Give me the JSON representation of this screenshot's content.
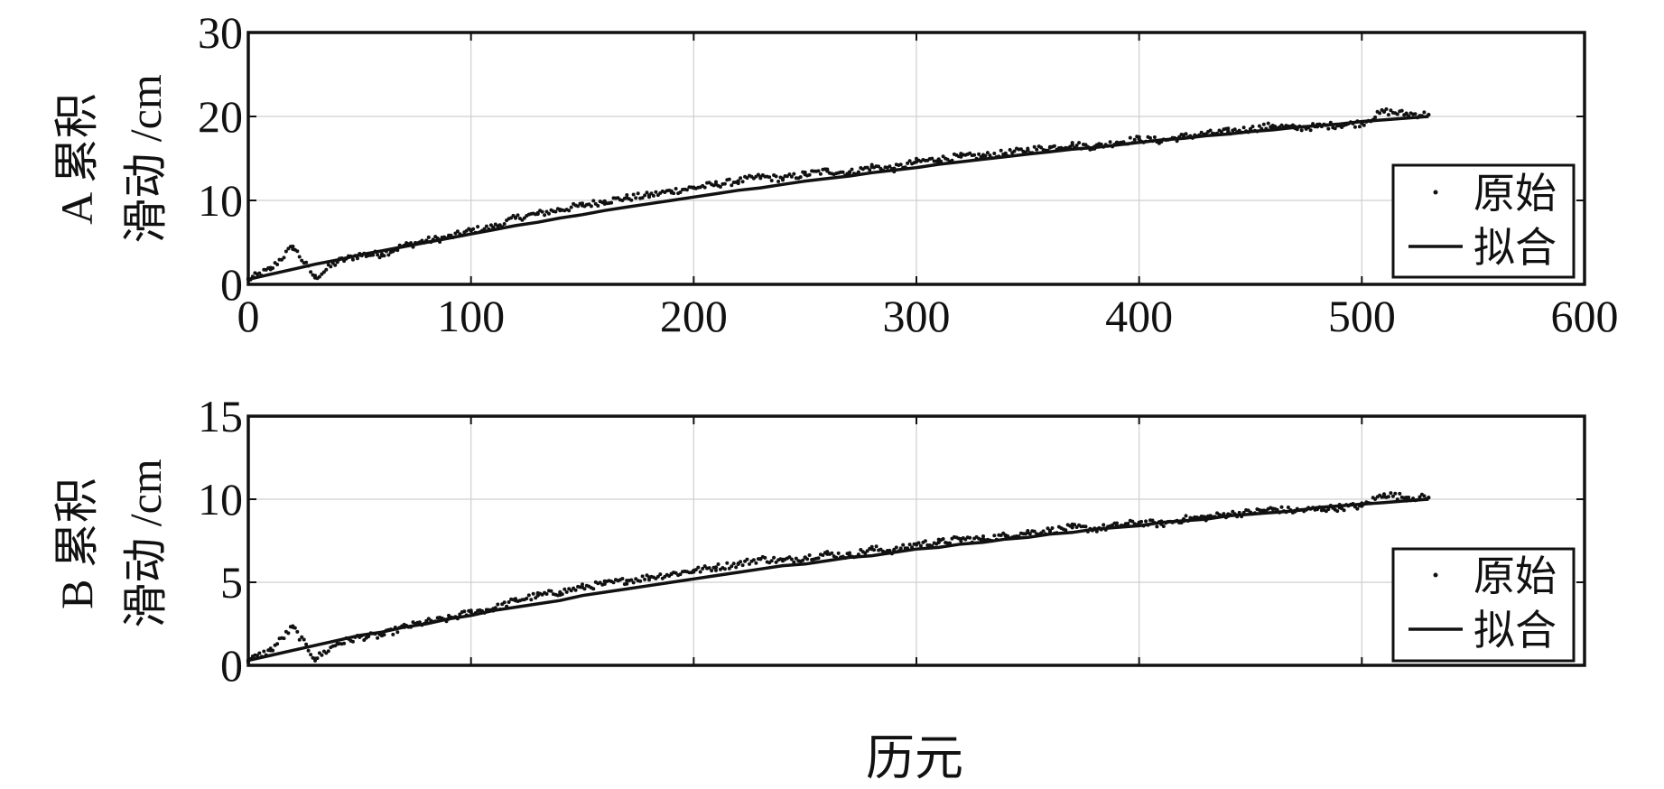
{
  "chart_data": [
    {
      "type": "scatter",
      "ylabel_line1": "A 累积",
      "ylabel_line2": "滑动 /cm",
      "xlim": [
        0,
        600
      ],
      "ylim": [
        0,
        30
      ],
      "xticks": [
        0,
        100,
        200,
        300,
        400,
        500,
        600
      ],
      "yticks": [
        0,
        10,
        20,
        30
      ],
      "xtick_labels": [
        "0",
        "100",
        "200",
        "300",
        "400",
        "500",
        "600"
      ],
      "ytick_labels": [
        "0",
        "10",
        "20",
        "30"
      ],
      "grid": true,
      "legend_position": "lower-right",
      "legend": [
        "原始",
        "拟合"
      ],
      "series": [
        {
          "name": "原始",
          "style": "dots",
          "x": [
            0,
            10,
            20,
            30,
            40,
            50,
            60,
            70,
            80,
            90,
            100,
            110,
            120,
            130,
            140,
            150,
            160,
            170,
            180,
            190,
            200,
            210,
            220,
            230,
            240,
            250,
            260,
            270,
            280,
            290,
            300,
            310,
            320,
            330,
            340,
            350,
            360,
            370,
            380,
            390,
            400,
            410,
            420,
            430,
            440,
            450,
            460,
            470,
            480,
            490,
            500,
            510,
            520,
            530
          ],
          "y": [
            0.6,
            1.8,
            4.5,
            0.8,
            2.7,
            3.5,
            3.6,
            4.6,
            5.2,
            5.6,
            6.4,
            6.8,
            7.9,
            8.4,
            8.9,
            9.4,
            9.9,
            10.3,
            10.6,
            11.1,
            11.5,
            11.9,
            12.3,
            12.8,
            12.6,
            13.1,
            13.5,
            13.3,
            14.0,
            13.8,
            14.6,
            14.9,
            15.2,
            15.3,
            15.6,
            16.0,
            16.3,
            16.6,
            16.4,
            16.9,
            17.3,
            17.1,
            17.6,
            17.9,
            18.2,
            18.5,
            18.9,
            18.6,
            18.8,
            19.0,
            19.2,
            20.6,
            20.3,
            20.2
          ]
        },
        {
          "name": "拟合",
          "style": "line",
          "x": [
            0,
            10,
            20,
            30,
            40,
            50,
            60,
            70,
            80,
            90,
            100,
            110,
            120,
            130,
            140,
            150,
            160,
            170,
            180,
            190,
            200,
            210,
            220,
            230,
            240,
            250,
            260,
            270,
            280,
            290,
            300,
            310,
            320,
            330,
            340,
            350,
            360,
            370,
            380,
            390,
            400,
            410,
            420,
            430,
            440,
            450,
            460,
            470,
            480,
            490,
            500,
            510,
            520,
            530
          ],
          "y": [
            0.6,
            1.2,
            1.8,
            2.4,
            2.9,
            3.5,
            4.0,
            4.5,
            5.0,
            5.5,
            6.0,
            6.5,
            7.0,
            7.4,
            7.9,
            8.3,
            8.8,
            9.2,
            9.6,
            10.0,
            10.4,
            10.8,
            11.2,
            11.5,
            11.9,
            12.3,
            12.6,
            12.9,
            13.3,
            13.6,
            13.9,
            14.3,
            14.6,
            14.9,
            15.2,
            15.5,
            15.8,
            16.1,
            16.3,
            16.6,
            16.9,
            17.2,
            17.4,
            17.7,
            17.9,
            18.2,
            18.4,
            18.7,
            18.9,
            19.1,
            19.4,
            19.6,
            19.8,
            20.0
          ]
        }
      ]
    },
    {
      "type": "scatter",
      "ylabel_line1": "B 累积",
      "ylabel_line2": "滑动 /cm",
      "xlabel": "历元",
      "xlim": [
        0,
        600
      ],
      "ylim": [
        0,
        15
      ],
      "xticks": [
        0,
        100,
        200,
        300,
        400,
        500,
        600
      ],
      "yticks": [
        0,
        5,
        10,
        15
      ],
      "ytick_labels": [
        "0",
        "5",
        "10",
        "15"
      ],
      "grid": true,
      "legend_position": "lower-right",
      "legend": [
        "原始",
        "拟合"
      ],
      "series": [
        {
          "name": "原始",
          "style": "dots",
          "x": [
            0,
            10,
            20,
            30,
            40,
            50,
            60,
            70,
            80,
            90,
            100,
            110,
            120,
            130,
            140,
            150,
            160,
            170,
            180,
            190,
            200,
            210,
            220,
            230,
            240,
            250,
            260,
            270,
            280,
            290,
            300,
            310,
            320,
            330,
            340,
            350,
            360,
            370,
            380,
            390,
            400,
            410,
            420,
            430,
            440,
            450,
            460,
            470,
            480,
            490,
            500,
            510,
            520,
            530
          ],
          "y": [
            0.3,
            0.9,
            2.3,
            0.4,
            1.3,
            1.7,
            1.8,
            2.3,
            2.6,
            2.8,
            3.2,
            3.4,
            3.9,
            4.2,
            4.4,
            4.7,
            4.9,
            5.1,
            5.3,
            5.5,
            5.7,
            5.9,
            6.1,
            6.4,
            6.3,
            6.5,
            6.7,
            6.6,
            7.0,
            6.9,
            7.3,
            7.4,
            7.6,
            7.6,
            7.8,
            8.0,
            8.1,
            8.3,
            8.2,
            8.4,
            8.6,
            8.5,
            8.8,
            8.9,
            9.1,
            9.2,
            9.4,
            9.3,
            9.4,
            9.5,
            9.6,
            10.3,
            10.1,
            10.1
          ]
        },
        {
          "name": "拟合",
          "style": "line",
          "x": [
            0,
            10,
            20,
            30,
            40,
            50,
            60,
            70,
            80,
            90,
            100,
            110,
            120,
            130,
            140,
            150,
            160,
            170,
            180,
            190,
            200,
            210,
            220,
            230,
            240,
            250,
            260,
            270,
            280,
            290,
            300,
            310,
            320,
            330,
            340,
            350,
            360,
            370,
            380,
            390,
            400,
            410,
            420,
            430,
            440,
            450,
            460,
            470,
            480,
            490,
            500,
            510,
            520,
            530
          ],
          "y": [
            0.3,
            0.6,
            0.9,
            1.2,
            1.5,
            1.8,
            2.0,
            2.3,
            2.5,
            2.8,
            3.0,
            3.3,
            3.5,
            3.7,
            3.9,
            4.2,
            4.4,
            4.6,
            4.8,
            5.0,
            5.2,
            5.4,
            5.6,
            5.8,
            6.0,
            6.1,
            6.3,
            6.5,
            6.6,
            6.8,
            7.0,
            7.1,
            7.3,
            7.4,
            7.6,
            7.7,
            7.9,
            8.0,
            8.2,
            8.3,
            8.4,
            8.6,
            8.7,
            8.8,
            9.0,
            9.1,
            9.2,
            9.3,
            9.5,
            9.6,
            9.7,
            9.8,
            9.9,
            10.0
          ]
        }
      ]
    }
  ]
}
